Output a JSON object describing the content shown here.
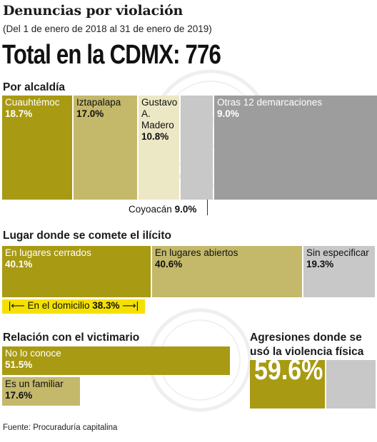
{
  "header": {
    "title": "Denuncias por violación",
    "subtitle": "(Del 1 de enero de 2018 al 31 de enero de 2019)",
    "total_label": "Total en la CDMX: 776"
  },
  "colors": {
    "dark_olive": "#a89a12",
    "mid_olive": "#c4b86b",
    "light_cream": "#ece7c5",
    "light_gray": "#c8c8c8",
    "dark_gray": "#9d9d9d",
    "highlight_yellow": "#f5e100"
  },
  "sections": {
    "alcaldia": "Por alcaldía",
    "lugar": "Lugar donde se comete el ilícito",
    "relacion": "Relación con el victimario",
    "agresiones_line1": "Agresiones donde se",
    "agresiones_line2": "usó la violencia física"
  },
  "chart_data": [
    {
      "type": "bar",
      "title": "Por alcaldía",
      "categories": [
        "Cuauhtémoc",
        "Iztapalapa",
        "Gustavo A. Madero",
        "Coyoacán",
        "Otras 12 demarcaciones"
      ],
      "values": [
        18.7,
        17.0,
        10.8,
        9.0,
        9.0
      ],
      "value_labels": [
        "18.7%",
        "17.0%",
        "10.8%",
        "9.0%",
        "9.0%"
      ],
      "label_lines": [
        [
          "Cuauhtémoc"
        ],
        [
          "Iztapalapa"
        ],
        [
          "Gustavo",
          "A. Madero"
        ],
        [
          "Coyoacán"
        ],
        [
          "Otras 12 demarcaciones"
        ]
      ],
      "colors": [
        "#a89a12",
        "#c4b86b",
        "#ece7c5",
        "#c8c8c8",
        "#9d9d9d"
      ]
    },
    {
      "type": "bar",
      "title": "Lugar donde se comete el ilícito",
      "categories": [
        "En lugares cerrados",
        "En lugares abiertos",
        "Sin especificar"
      ],
      "values": [
        40.1,
        40.6,
        19.3
      ],
      "value_labels": [
        "40.1%",
        "40.6%",
        "19.3%"
      ],
      "colors": [
        "#a89a12",
        "#c4b86b",
        "#c8c8c8"
      ],
      "sub_note": {
        "label": "En el domicilio",
        "value": 38.3,
        "value_label": "38.3%"
      }
    },
    {
      "type": "bar",
      "title": "Relación con el victimario",
      "categories": [
        "No lo conoce",
        "Es un familiar"
      ],
      "values": [
        51.5,
        17.6
      ],
      "value_labels": [
        "51.5%",
        "17.6%"
      ],
      "colors": [
        "#a89a12",
        "#c4b86b"
      ]
    },
    {
      "type": "bar",
      "title": "Agresiones donde se usó la violencia física",
      "categories": [
        "Violencia física"
      ],
      "values": [
        59.6
      ],
      "value_labels": [
        "59.6%"
      ],
      "colors": [
        "#a89a12",
        "#c8c8c8"
      ]
    }
  ],
  "source": "Fuente: Procuraduría capitalina"
}
